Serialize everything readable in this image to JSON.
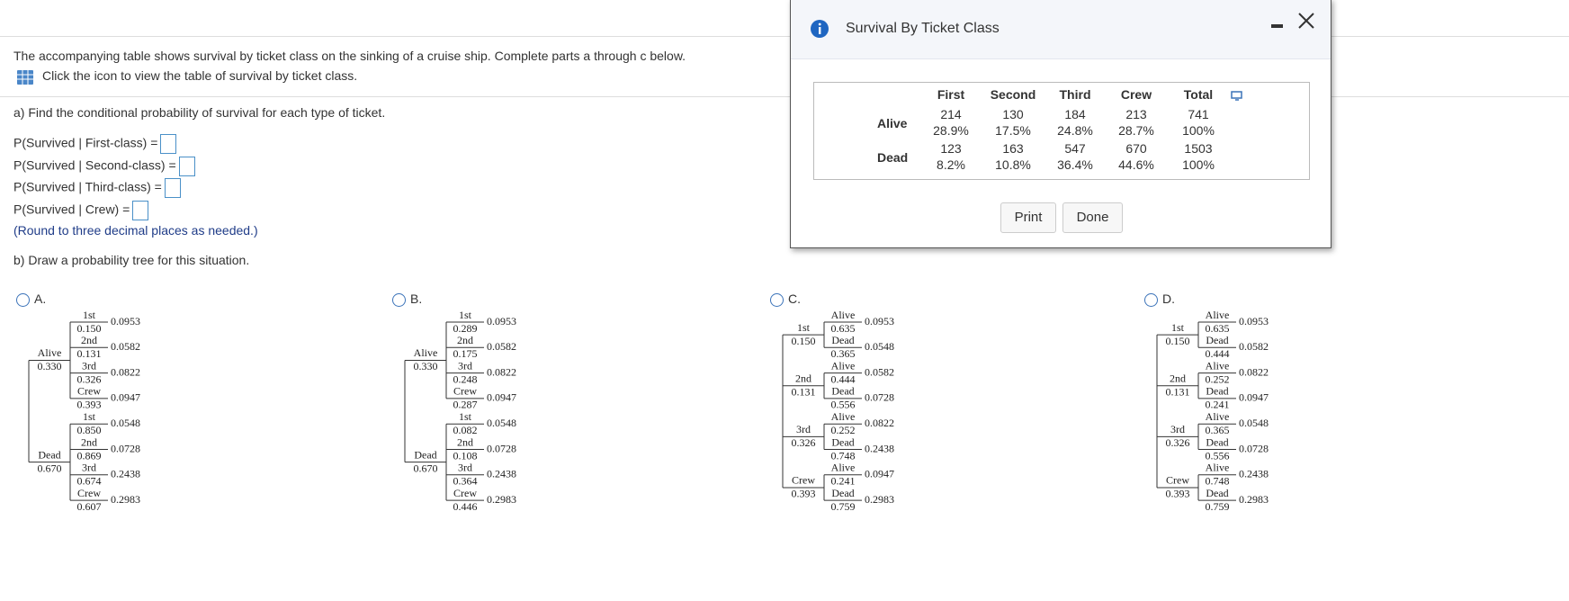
{
  "question": {
    "intro": "The accompanying table shows survival by ticket class on the sinking of a cruise ship. Complete parts a through c below.",
    "link": "Click the icon to view the table of survival by ticket class."
  },
  "part_a": {
    "prompt": "a) Find the conditional probability of survival for each type of ticket.",
    "items": [
      "P(Survived | First-class) =",
      "P(Survived | Second-class) =",
      "P(Survived | Third-class) =",
      "P(Survived | Crew) ="
    ],
    "note": "(Round to three decimal places as needed.)"
  },
  "part_b": {
    "prompt": "b) Draw a probability tree for this situation."
  },
  "options": [
    {
      "letter": "A.",
      "branches": [
        {
          "label": "Alive",
          "prob": "0.330",
          "children": [
            {
              "label": "1st",
              "prob": "0.150",
              "result": "0.0953"
            },
            {
              "label": "2nd",
              "prob": "0.131",
              "result": "0.0582"
            },
            {
              "label": "3rd",
              "prob": "0.326",
              "result": "0.0822"
            },
            {
              "label": "Crew",
              "prob": "0.393",
              "result": "0.0947"
            }
          ]
        },
        {
          "label": "Dead",
          "prob": "0.670",
          "children": [
            {
              "label": "1st",
              "prob": "0.850",
              "result": "0.0548"
            },
            {
              "label": "2nd",
              "prob": "0.869",
              "result": "0.0728"
            },
            {
              "label": "3rd",
              "prob": "0.674",
              "result": "0.2438"
            },
            {
              "label": "Crew",
              "prob": "0.607",
              "result": "0.2983"
            }
          ]
        }
      ]
    },
    {
      "letter": "B.",
      "branches": [
        {
          "label": "Alive",
          "prob": "0.330",
          "children": [
            {
              "label": "1st",
              "prob": "0.289",
              "result": "0.0953"
            },
            {
              "label": "2nd",
              "prob": "0.175",
              "result": "0.0582"
            },
            {
              "label": "3rd",
              "prob": "0.248",
              "result": "0.0822"
            },
            {
              "label": "Crew",
              "prob": "0.287",
              "result": "0.0947"
            }
          ]
        },
        {
          "label": "Dead",
          "prob": "0.670",
          "children": [
            {
              "label": "1st",
              "prob": "0.082",
              "result": "0.0548"
            },
            {
              "label": "2nd",
              "prob": "0.108",
              "result": "0.0728"
            },
            {
              "label": "3rd",
              "prob": "0.364",
              "result": "0.2438"
            },
            {
              "label": "Crew",
              "prob": "0.446",
              "result": "0.2983"
            }
          ]
        }
      ]
    },
    {
      "letter": "C.",
      "branches": [
        {
          "label": "1st",
          "prob": "0.150",
          "children": [
            {
              "label": "Alive",
              "prob": "0.635",
              "result": "0.0953"
            },
            {
              "label": "Dead",
              "prob": "0.365",
              "result": "0.0548"
            }
          ]
        },
        {
          "label": "2nd",
          "prob": "0.131",
          "children": [
            {
              "label": "Alive",
              "prob": "0.444",
              "result": "0.0582"
            },
            {
              "label": "Dead",
              "prob": "0.556",
              "result": "0.0728"
            }
          ]
        },
        {
          "label": "3rd",
          "prob": "0.326",
          "children": [
            {
              "label": "Alive",
              "prob": "0.252",
              "result": "0.0822"
            },
            {
              "label": "Dead",
              "prob": "0.748",
              "result": "0.2438"
            }
          ]
        },
        {
          "label": "Crew",
          "prob": "0.393",
          "children": [
            {
              "label": "Alive",
              "prob": "0.241",
              "result": "0.0947"
            },
            {
              "label": "Dead",
              "prob": "0.759",
              "result": "0.2983"
            }
          ]
        }
      ]
    },
    {
      "letter": "D.",
      "branches": [
        {
          "label": "1st",
          "prob": "0.150",
          "children": [
            {
              "label": "Alive",
              "prob": "0.635",
              "result": "0.0953"
            },
            {
              "label": "Dead",
              "prob": "0.444",
              "result": "0.0582"
            }
          ]
        },
        {
          "label": "2nd",
          "prob": "0.131",
          "children": [
            {
              "label": "Alive",
              "prob": "0.252",
              "result": "0.0822"
            },
            {
              "label": "Dead",
              "prob": "0.241",
              "result": "0.0947"
            }
          ]
        },
        {
          "label": "3rd",
          "prob": "0.326",
          "children": [
            {
              "label": "Alive",
              "prob": "0.365",
              "result": "0.0548"
            },
            {
              "label": "Dead",
              "prob": "0.556",
              "result": "0.0728"
            }
          ]
        },
        {
          "label": "Crew",
          "prob": "0.393",
          "children": [
            {
              "label": "Alive",
              "prob": "0.748",
              "result": "0.2438"
            },
            {
              "label": "Dead",
              "prob": "0.759",
              "result": "0.2983"
            }
          ]
        }
      ]
    }
  ],
  "dialog": {
    "title": "Survival By Ticket Class",
    "table": {
      "columns": [
        "First",
        "Second",
        "Third",
        "Crew",
        "Total"
      ],
      "rows": [
        {
          "label": "Alive",
          "counts": [
            "214",
            "130",
            "184",
            "213",
            "741"
          ],
          "percents": [
            "28.9%",
            "17.5%",
            "24.8%",
            "28.7%",
            "100%"
          ]
        },
        {
          "label": "Dead",
          "counts": [
            "123",
            "163",
            "547",
            "670",
            "1503"
          ],
          "percents": [
            "8.2%",
            "10.8%",
            "36.4%",
            "44.6%",
            "100%"
          ]
        }
      ]
    },
    "buttons": [
      "Print",
      "Done"
    ]
  }
}
